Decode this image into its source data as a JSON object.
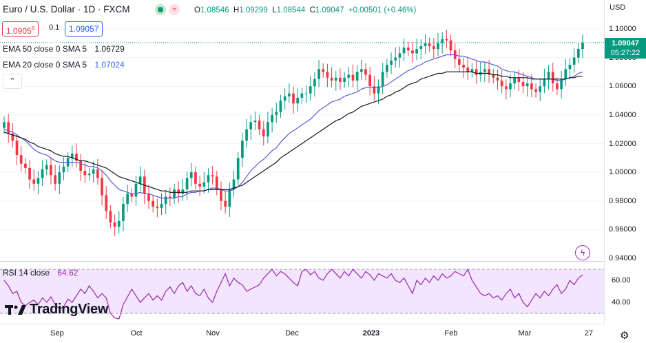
{
  "header": {
    "symbol_title": "Euro / U.S. Dollar · 1D · FXCM",
    "ohlc": {
      "o_label": "O",
      "o": "1.08546",
      "h_label": "H",
      "h": "1.09299",
      "l_label": "L",
      "l": "1.08544",
      "c_label": "C",
      "c": "1.09047",
      "change": "+0.00501 (+0.46%)"
    },
    "sell_price": "1.0905",
    "sell_superscript": "6",
    "spread": "0.1",
    "buy_price": "1.09057"
  },
  "indicators": {
    "ema50_label": "EMA 50 close 0 SMA 5",
    "ema50_value": "1.06729",
    "ema20_label": "EMA 20 close 0 SMA 5",
    "ema20_value": "1.07024",
    "collapse_symbol": "⌃"
  },
  "price_scale": {
    "currency": "USD",
    "labels": [
      "1.10000",
      "1.08000",
      "1.06000",
      "1.04000",
      "1.02000",
      "1.00000",
      "0.98000",
      "0.96000",
      "0.94000"
    ],
    "last_price": "1.09047",
    "countdown": "05:27:22"
  },
  "rsi": {
    "label": "RSI 14 close",
    "value": "64.62",
    "labels": [
      "60.00",
      "40.00"
    ],
    "series": [
      60,
      55,
      48,
      50,
      40,
      37,
      40,
      42,
      38,
      44,
      40,
      45,
      38,
      34,
      36,
      43,
      40,
      46,
      52,
      48,
      55,
      50,
      44,
      48,
      44,
      30,
      26,
      25,
      38,
      45,
      52,
      46,
      40,
      44,
      48,
      42,
      46,
      42,
      50,
      54,
      48,
      55,
      58,
      50,
      55,
      48,
      46,
      52,
      44,
      40,
      50,
      58,
      66,
      55,
      62,
      58,
      56,
      50,
      52,
      54,
      56,
      62,
      66,
      70,
      64,
      68,
      66,
      62,
      58,
      55,
      68,
      70,
      65,
      68,
      62,
      60,
      66,
      70,
      66,
      62,
      68,
      64,
      70,
      66,
      62,
      68,
      65,
      60,
      66,
      64,
      62,
      66,
      60,
      58,
      62,
      55,
      48,
      60,
      56,
      62,
      58,
      64,
      60,
      66,
      62,
      64,
      68,
      66,
      64,
      70,
      60,
      54,
      48,
      46,
      48,
      44,
      46,
      42,
      48,
      52,
      44,
      48,
      40,
      36,
      42,
      48,
      44,
      50,
      46,
      52,
      56,
      48,
      52,
      60,
      56,
      62,
      65
    ]
  },
  "time_axis": {
    "labels": [
      "Sep",
      "Oct",
      "Nov",
      "Dec",
      "2023",
      "Feb",
      "Mar",
      "27"
    ]
  },
  "chart_data": {
    "type": "candlestick",
    "symbol": "Euro / U.S. Dollar",
    "interval": "1D",
    "ylim": [
      0.94,
      1.105
    ],
    "close": [
      1.035,
      1.027,
      1.022,
      1.012,
      1.006,
      1.003,
      0.995,
      0.992,
      0.996,
      1.002,
      1.005,
      0.998,
      0.992,
      1.0,
      1.004,
      1.01,
      1.013,
      1.008,
      1.001,
      0.998,
      0.999,
      1.002,
      0.996,
      0.984,
      0.973,
      0.965,
      0.962,
      0.966,
      0.978,
      0.985,
      0.983,
      0.992,
      0.997,
      0.985,
      0.98,
      0.976,
      0.975,
      0.978,
      0.983,
      0.982,
      0.988,
      0.985,
      0.988,
      0.996,
      1.0,
      0.992,
      0.99,
      0.993,
      0.998,
      0.997,
      0.988,
      0.98,
      0.976,
      0.988,
      0.995,
      1.01,
      1.022,
      1.03,
      1.035,
      1.036,
      1.03,
      1.025,
      1.035,
      1.04,
      1.042,
      1.05,
      1.053,
      1.055,
      1.048,
      1.052,
      1.055,
      1.055,
      1.06,
      1.065,
      1.072,
      1.07,
      1.066,
      1.064,
      1.066,
      1.063,
      1.066,
      1.068,
      1.064,
      1.07,
      1.072,
      1.068,
      1.06,
      1.055,
      1.06,
      1.07,
      1.075,
      1.078,
      1.08,
      1.083,
      1.087,
      1.085,
      1.083,
      1.086,
      1.088,
      1.09,
      1.088,
      1.086,
      1.09,
      1.093,
      1.092,
      1.085,
      1.079,
      1.075,
      1.073,
      1.07,
      1.072,
      1.068,
      1.07,
      1.072,
      1.068,
      1.066,
      1.064,
      1.06,
      1.058,
      1.062,
      1.066,
      1.063,
      1.06,
      1.062,
      1.058,
      1.056,
      1.06,
      1.065,
      1.07,
      1.062,
      1.058,
      1.065,
      1.072,
      1.075,
      1.08,
      1.086,
      1.0905
    ],
    "ema20": [
      1.03,
      1.029,
      1.028,
      1.026,
      1.024,
      1.022,
      1.019,
      1.016,
      1.014,
      1.013,
      1.012,
      1.01,
      1.008,
      1.007,
      1.007,
      1.007,
      1.007,
      1.007,
      1.006,
      1.005,
      1.004,
      1.004,
      1.003,
      1.001,
      0.998,
      0.994,
      0.991,
      0.988,
      0.987,
      0.986,
      0.985,
      0.985,
      0.986,
      0.985,
      0.985,
      0.984,
      0.983,
      0.982,
      0.982,
      0.982,
      0.982,
      0.983,
      0.983,
      0.985,
      0.986,
      0.986,
      0.987,
      0.987,
      0.988,
      0.989,
      0.989,
      0.988,
      0.987,
      0.987,
      0.988,
      0.99,
      0.993,
      0.997,
      1.001,
      1.004,
      1.007,
      1.009,
      1.012,
      1.015,
      1.017,
      1.021,
      1.024,
      1.027,
      1.029,
      1.031,
      1.033,
      1.035,
      1.037,
      1.04,
      1.043,
      1.045,
      1.047,
      1.049,
      1.05,
      1.051,
      1.053,
      1.054,
      1.055,
      1.056,
      1.058,
      1.059,
      1.059,
      1.059,
      1.059,
      1.06,
      1.061,
      1.063,
      1.065,
      1.067,
      1.069,
      1.071,
      1.072,
      1.074,
      1.075,
      1.077,
      1.078,
      1.079,
      1.08,
      1.081,
      1.082,
      1.082,
      1.082,
      1.081,
      1.081,
      1.08,
      1.079,
      1.078,
      1.077,
      1.077,
      1.076,
      1.075,
      1.074,
      1.072,
      1.071,
      1.07,
      1.07,
      1.069,
      1.068,
      1.067,
      1.066,
      1.065,
      1.065,
      1.065,
      1.065,
      1.065,
      1.064,
      1.064,
      1.065,
      1.066,
      1.067,
      1.069,
      1.07
    ],
    "ema50": [
      1.028,
      1.027,
      1.026,
      1.025,
      1.024,
      1.023,
      1.021,
      1.02,
      1.018,
      1.017,
      1.016,
      1.015,
      1.013,
      1.012,
      1.011,
      1.011,
      1.01,
      1.009,
      1.008,
      1.008,
      1.007,
      1.006,
      1.005,
      1.004,
      1.003,
      1.001,
      0.999,
      0.997,
      0.996,
      0.995,
      0.994,
      0.993,
      0.992,
      0.991,
      0.99,
      0.989,
      0.988,
      0.987,
      0.987,
      0.986,
      0.986,
      0.986,
      0.986,
      0.986,
      0.987,
      0.987,
      0.987,
      0.987,
      0.988,
      0.988,
      0.988,
      0.988,
      0.988,
      0.988,
      0.989,
      0.99,
      0.991,
      0.993,
      0.995,
      0.997,
      0.999,
      1.001,
      1.003,
      1.005,
      1.007,
      1.01,
      1.012,
      1.014,
      1.016,
      1.018,
      1.02,
      1.022,
      1.024,
      1.026,
      1.028,
      1.03,
      1.032,
      1.034,
      1.036,
      1.037,
      1.039,
      1.041,
      1.042,
      1.044,
      1.046,
      1.047,
      1.048,
      1.049,
      1.05,
      1.051,
      1.053,
      1.054,
      1.056,
      1.057,
      1.059,
      1.061,
      1.062,
      1.063,
      1.065,
      1.066,
      1.067,
      1.068,
      1.069,
      1.069,
      1.07,
      1.07,
      1.07,
      1.07,
      1.07,
      1.07,
      1.07,
      1.069,
      1.069,
      1.069,
      1.069,
      1.068,
      1.068,
      1.067,
      1.067,
      1.066,
      1.066,
      1.066,
      1.066,
      1.066,
      1.065,
      1.065,
      1.065,
      1.065,
      1.065,
      1.065,
      1.065,
      1.065,
      1.065,
      1.066,
      1.066,
      1.067,
      1.067
    ],
    "colors": {
      "up": "#089981",
      "down": "#f23645",
      "ema20": "#5b5fd6",
      "ema50": "#131722",
      "rsi": "#9c27b0",
      "rsi_band": "#f3e5fd"
    }
  }
}
